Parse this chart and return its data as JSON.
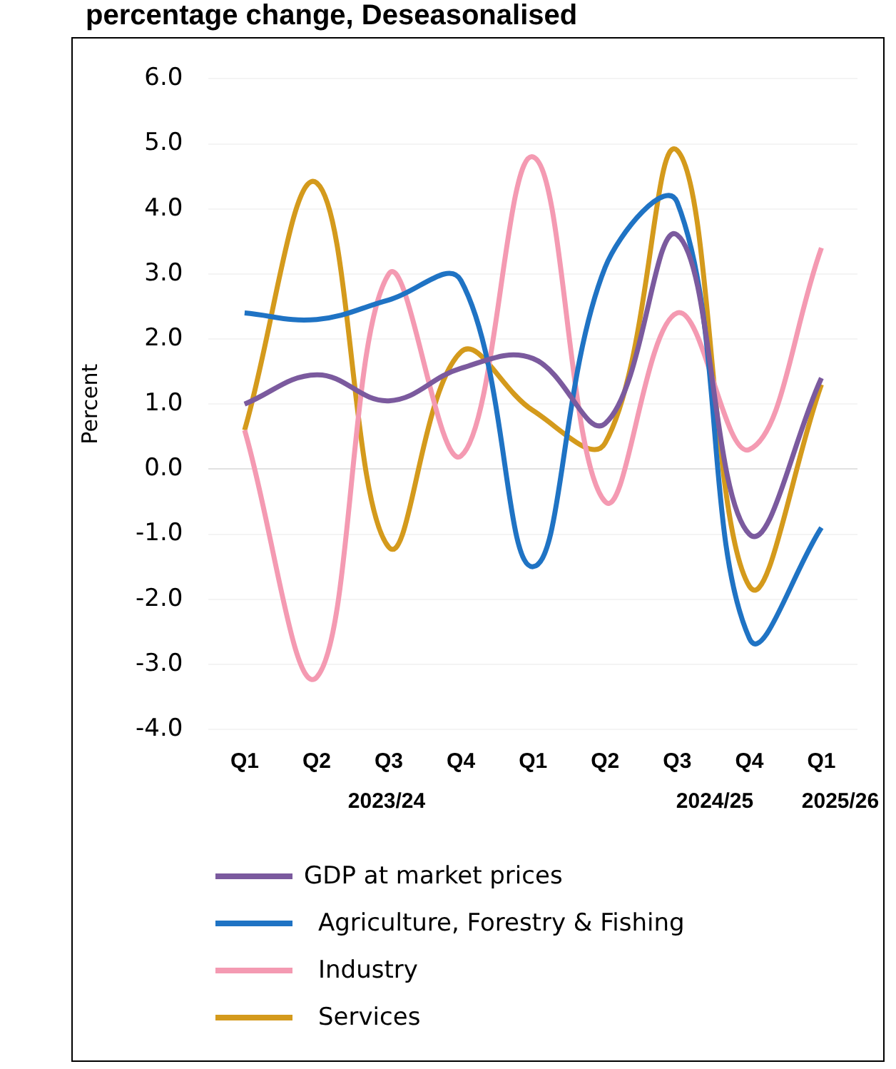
{
  "chart_data": {
    "type": "line",
    "title": "percentage change, Deseasonalised",
    "ylabel": "Percent",
    "categories": [
      "Q1",
      "Q2",
      "Q3",
      "Q4",
      "Q1",
      "Q2",
      "Q3",
      "Q4",
      "Q1"
    ],
    "annotations": [
      "2023/24",
      "2024/25",
      "2025/26"
    ],
    "ylim": [
      -4,
      6
    ],
    "yticks": [
      {
        "value": -4,
        "label": "-4.0"
      },
      {
        "value": -3,
        "label": "-3.0"
      },
      {
        "value": -2,
        "label": "-2.0"
      },
      {
        "value": -1,
        "label": "-1.0"
      },
      {
        "value": 0,
        "label": "0.0"
      },
      {
        "value": 1,
        "label": "1.0"
      },
      {
        "value": 2,
        "label": "2.0"
      },
      {
        "value": 3,
        "label": "3.0"
      },
      {
        "value": 4,
        "label": "4.0"
      },
      {
        "value": 5,
        "label": "5.0"
      },
      {
        "value": 6,
        "label": "6.0"
      }
    ],
    "grid": "y",
    "legend": "bottom",
    "marker": "none",
    "series": [
      {
        "name": "GDP at market prices",
        "color": "#7b5a9e",
        "values": [
          1.0,
          1.45,
          1.05,
          1.55,
          1.7,
          0.7,
          3.6,
          -1.0,
          1.4
        ]
      },
      {
        "name": "Agriculture, Forestry & Fishing",
        "color": "#1f73c4",
        "values": [
          2.4,
          2.3,
          2.6,
          2.9,
          -1.5,
          3.1,
          4.1,
          -2.6,
          -0.9
        ]
      },
      {
        "name": "Industry",
        "color": "#f49ab2",
        "values": [
          0.6,
          -3.2,
          3.0,
          0.2,
          4.8,
          -0.5,
          2.4,
          0.3,
          3.4
        ]
      },
      {
        "name": "Services",
        "color": "#d49a1c",
        "values": [
          0.6,
          4.4,
          -1.2,
          1.8,
          0.9,
          0.4,
          4.9,
          -1.8,
          1.3
        ]
      }
    ]
  }
}
